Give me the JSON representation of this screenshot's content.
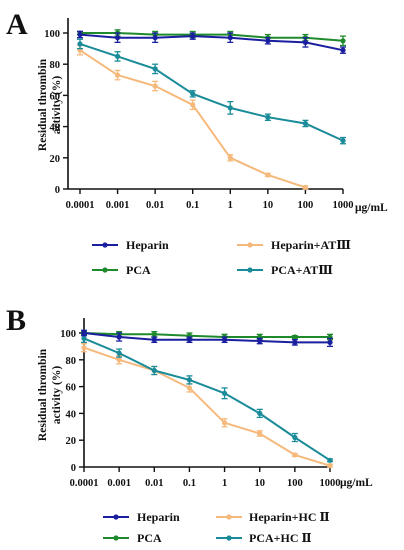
{
  "chart_data": [
    {
      "type": "line",
      "panel_label": "A",
      "ylabel_lines": [
        "Residual thrombin",
        "activity (%)"
      ],
      "x_tick_labels": [
        "0.0001",
        "0.001",
        "0.01",
        "0.1",
        "1",
        "10",
        "100",
        "1000"
      ],
      "x_unit": "μg/mL",
      "x_scale": "log",
      "ylim": [
        0,
        100
      ],
      "yticks": [
        "0",
        "20",
        "40",
        "60",
        "80",
        "100"
      ],
      "grid": false,
      "legend_position": "bottom",
      "series": [
        {
          "name": "Heparin",
          "color": "#1a1fa0",
          "x": [
            0.0001,
            0.001,
            0.01,
            0.1,
            1,
            10,
            100,
            1000
          ],
          "y": [
            99,
            97,
            97,
            98,
            97,
            95,
            94,
            89
          ],
          "err": [
            2,
            3,
            3,
            2,
            3,
            2,
            3,
            2
          ]
        },
        {
          "name": "Heparin+ATⅢ",
          "color": "#f6b97c",
          "x": [
            0.0001,
            0.001,
            0.01,
            0.1,
            1,
            10,
            100
          ],
          "y": [
            89,
            73,
            66,
            54,
            20,
            9,
            1
          ],
          "err": [
            3,
            3,
            3,
            3,
            2,
            1,
            1
          ]
        },
        {
          "name": "PCA",
          "color": "#1e8a2c",
          "x": [
            0.0001,
            0.001,
            0.01,
            0.1,
            1,
            10,
            100,
            1000
          ],
          "y": [
            100,
            100,
            99,
            99,
            99,
            97,
            97,
            95
          ],
          "err": [
            1,
            2,
            2,
            2,
            2,
            2,
            2,
            3
          ]
        },
        {
          "name": "PCA+ATⅢ",
          "color": "#1a8b99",
          "x": [
            0.0001,
            0.001,
            0.01,
            0.1,
            1,
            10,
            100,
            1000
          ],
          "y": [
            93,
            85,
            77,
            61,
            52,
            46,
            42,
            31
          ],
          "err": [
            3,
            3,
            3,
            2,
            4,
            2,
            2,
            2
          ]
        }
      ]
    },
    {
      "type": "line",
      "panel_label": "B",
      "ylabel_lines": [
        "Residual thrombin",
        "activity (%)"
      ],
      "x_tick_labels": [
        "0.0001",
        "0.001",
        "0.01",
        "0.1",
        "1",
        "10",
        "100",
        "1000"
      ],
      "x_unit": "μg/mL",
      "x_scale": "log",
      "ylim": [
        0,
        100
      ],
      "yticks": [
        "0",
        "20",
        "40",
        "60",
        "80",
        "100"
      ],
      "grid": false,
      "legend_position": "bottom",
      "series": [
        {
          "name": "Heparin",
          "color": "#1a1fa0",
          "x": [
            0.0001,
            0.001,
            0.01,
            0.1,
            1,
            10,
            100,
            1000
          ],
          "y": [
            100,
            97,
            95,
            95,
            95,
            94,
            93,
            93
          ],
          "err": [
            2,
            3,
            2,
            2,
            2,
            2,
            2,
            3
          ]
        },
        {
          "name": "Heparin+HC Ⅱ",
          "color": "#f6b97c",
          "x": [
            0.0001,
            0.001,
            0.01,
            0.1,
            1,
            10,
            100,
            1000
          ],
          "y": [
            89,
            80,
            72,
            59,
            33,
            25,
            9,
            1
          ],
          "err": [
            3,
            3,
            3,
            3,
            3,
            2,
            1,
            1
          ]
        },
        {
          "name": "PCA",
          "color": "#1e8a2c",
          "x": [
            0.0001,
            0.001,
            0.01,
            0.1,
            1,
            10,
            100,
            1000
          ],
          "y": [
            100,
            99,
            99,
            98,
            97,
            97,
            97,
            97
          ],
          "err": [
            1,
            2,
            2,
            2,
            2,
            2,
            1,
            2
          ]
        },
        {
          "name": "PCA+HC Ⅱ",
          "color": "#1a8b99",
          "x": [
            0.0001,
            0.001,
            0.01,
            0.1,
            1,
            10,
            100,
            1000
          ],
          "y": [
            96,
            85,
            72,
            65,
            55,
            40,
            22,
            5
          ],
          "err": [
            3,
            3,
            3,
            3,
            4,
            3,
            3,
            1
          ]
        }
      ]
    }
  ]
}
